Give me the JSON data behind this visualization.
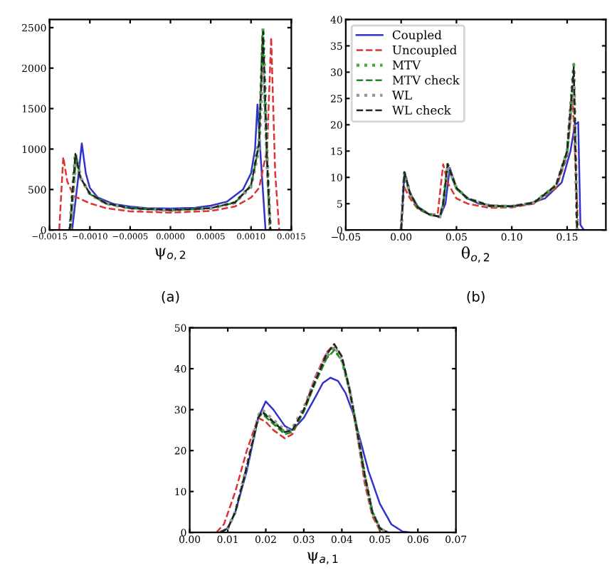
{
  "chart_data": [
    {
      "type": "line",
      "xlabel": "ψ$_{o,2}$",
      "annotations": [
        "(a)"
      ],
      "xlim": [
        -0.0015,
        0.0015
      ],
      "ylim": [
        0,
        2600
      ],
      "xticks": [
        {
          "value": -0.0015,
          "label": "−0.0015"
        },
        {
          "value": -0.001,
          "label": "−0.0010"
        },
        {
          "value": -0.0005,
          "label": "−0.0005"
        },
        {
          "value": 0,
          "label": "0.0000"
        },
        {
          "value": 0.0005,
          "label": "0.0005"
        },
        {
          "value": 0.001,
          "label": "0.0010"
        },
        {
          "value": 0.0015,
          "label": "0.0015"
        }
      ],
      "yticks": [
        0,
        500,
        1000,
        1500,
        2000,
        2500
      ],
      "grid": false,
      "legend": false,
      "series": [
        {
          "color": "#3333cc",
          "line_style": "solid",
          "x": [
            -0.00122,
            -0.00115,
            -0.0011,
            -0.00105,
            -0.001,
            -0.0009,
            -0.0007,
            -0.0005,
            -0.0003,
            0,
            0.0003,
            0.0005,
            0.0007,
            0.0009,
            0.001,
            0.00105,
            0.00108,
            0.00112,
            0.00118
          ],
          "values": [
            0,
            600,
            1070,
            700,
            520,
            400,
            320,
            290,
            270,
            265,
            275,
            300,
            350,
            500,
            700,
            1000,
            1550,
            900,
            0
          ]
        },
        {
          "color": "#dd3333",
          "line_style": "dashed",
          "x": [
            -0.00138,
            -0.00133,
            -0.00128,
            -0.0012,
            -0.001,
            -0.0008,
            -0.0005,
            0,
            0.0005,
            0.0008,
            0.001,
            0.0011,
            0.0012,
            0.00125,
            0.0013,
            0.00135
          ],
          "values": [
            0,
            900,
            600,
            420,
            330,
            270,
            230,
            215,
            235,
            290,
            400,
            520,
            1000,
            2380,
            700,
            0
          ]
        },
        {
          "color": "#44aa44",
          "line_style": "dotted",
          "x": [
            -0.00125,
            -0.00118,
            -0.00112,
            -0.001,
            -0.0008,
            -0.0005,
            0,
            0.0005,
            0.0008,
            0.001,
            0.0011,
            0.00115,
            0.0012,
            0.00124
          ],
          "values": [
            0,
            950,
            650,
            450,
            330,
            270,
            245,
            270,
            340,
            550,
            1100,
            2500,
            900,
            0
          ]
        },
        {
          "color": "#228822",
          "line_style": "dashed",
          "x": [
            -0.00124,
            -0.00117,
            -0.00111,
            -0.001,
            -0.0008,
            -0.0005,
            0,
            0.0005,
            0.0008,
            0.001,
            0.0011,
            0.00114,
            0.0012,
            0.00123
          ],
          "values": [
            0,
            920,
            640,
            445,
            325,
            268,
            243,
            268,
            338,
            540,
            1050,
            2400,
            800,
            0
          ]
        },
        {
          "color": "#999999",
          "line_style": "dotted",
          "x": [
            -0.00124,
            -0.00117,
            -0.00111,
            -0.001,
            -0.0008,
            -0.0005,
            0,
            0.0005,
            0.0008,
            0.001,
            0.0011,
            0.00115,
            0.0012,
            0.00124
          ],
          "values": [
            0,
            900,
            640,
            440,
            325,
            265,
            240,
            265,
            335,
            530,
            1000,
            2000,
            800,
            0
          ]
        },
        {
          "color": "#222222",
          "line_style": "dashed",
          "x": [
            -0.00125,
            -0.00118,
            -0.00112,
            -0.001,
            -0.0008,
            -0.0005,
            0,
            0.0005,
            0.0008,
            0.001,
            0.0011,
            0.00115,
            0.0012,
            0.00124
          ],
          "values": [
            0,
            940,
            650,
            450,
            330,
            270,
            245,
            270,
            340,
            550,
            1080,
            2450,
            850,
            0
          ]
        }
      ]
    },
    {
      "type": "line",
      "xlabel": "θ$_{o,2}$",
      "annotations": [
        "(b)"
      ],
      "xlim": [
        -0.05,
        0.185
      ],
      "ylim": [
        0,
        40
      ],
      "xticks": [
        {
          "value": -0.05,
          "label": "−0.05"
        },
        {
          "value": 0,
          "label": "0.00"
        },
        {
          "value": 0.05,
          "label": "0.05"
        },
        {
          "value": 0.1,
          "label": "0.10"
        },
        {
          "value": 0.15,
          "label": "0.15"
        }
      ],
      "yticks": [
        0,
        5,
        10,
        15,
        20,
        25,
        30,
        35,
        40
      ],
      "grid": false,
      "legend": "top left",
      "series": [
        {
          "name": "Coupled",
          "color": "#3333cc",
          "line_style": "solid",
          "x": [
            0,
            0.003,
            0.008,
            0.015,
            0.025,
            0.035,
            0.04,
            0.044,
            0.05,
            0.06,
            0.07,
            0.09,
            0.11,
            0.13,
            0.145,
            0.153,
            0.157,
            0.16,
            0.162,
            0.165
          ],
          "values": [
            0,
            11,
            7,
            4.5,
            3,
            2.5,
            5,
            11.8,
            8,
            6,
            5,
            4.5,
            4.7,
            6,
            9,
            15,
            20,
            20.5,
            1,
            0
          ]
        },
        {
          "name": "Uncoupled",
          "color": "#dd3333",
          "line_style": "dashed",
          "x": [
            0,
            0.002,
            0.008,
            0.015,
            0.025,
            0.033,
            0.038,
            0.042,
            0.05,
            0.06,
            0.08,
            0.1,
            0.12,
            0.14,
            0.15,
            0.155,
            0.158,
            0.16
          ],
          "values": [
            0,
            8.5,
            6,
            4,
            3,
            3,
            12.5,
            9,
            6,
            5,
            4.2,
            4.3,
            5,
            8,
            14,
            25,
            10,
            0
          ]
        },
        {
          "name": "MTV",
          "color": "#44aa44",
          "line_style": "dotted",
          "x": [
            0,
            0.003,
            0.008,
            0.015,
            0.025,
            0.035,
            0.038,
            0.042,
            0.05,
            0.06,
            0.08,
            0.1,
            0.12,
            0.14,
            0.15,
            0.156,
            0.159
          ],
          "values": [
            0,
            11,
            7,
            4.3,
            3,
            2.5,
            5,
            12.5,
            8,
            6,
            4.6,
            4.5,
            5.2,
            8.5,
            15,
            31.5,
            0
          ]
        },
        {
          "name": "MTV check",
          "color": "#228822",
          "line_style": "dashed",
          "x": [
            0,
            0.003,
            0.008,
            0.015,
            0.025,
            0.035,
            0.038,
            0.042,
            0.05,
            0.06,
            0.08,
            0.1,
            0.12,
            0.14,
            0.15,
            0.156,
            0.159
          ],
          "values": [
            0,
            10.5,
            6.8,
            4.2,
            3,
            2.5,
            5,
            12,
            7.8,
            5.9,
            4.5,
            4.5,
            5.1,
            8.3,
            14.5,
            30,
            0
          ]
        },
        {
          "name": "WL",
          "color": "#999999",
          "line_style": "dotted",
          "x": [
            0,
            0.003,
            0.008,
            0.015,
            0.025,
            0.035,
            0.038,
            0.042,
            0.05,
            0.06,
            0.08,
            0.1,
            0.12,
            0.14,
            0.15,
            0.156,
            0.159
          ],
          "values": [
            0,
            10.8,
            6.9,
            4.3,
            3,
            2.5,
            5,
            12.2,
            7.9,
            6,
            4.6,
            4.5,
            5.2,
            8.4,
            14.8,
            29,
            0
          ]
        },
        {
          "name": "WL check",
          "color": "#222222",
          "line_style": "dashed",
          "x": [
            0,
            0.003,
            0.008,
            0.015,
            0.025,
            0.035,
            0.038,
            0.042,
            0.05,
            0.06,
            0.08,
            0.1,
            0.12,
            0.14,
            0.15,
            0.156,
            0.159
          ],
          "values": [
            0,
            11,
            7,
            4.3,
            3,
            2.5,
            5,
            12.5,
            8,
            6,
            4.6,
            4.5,
            5.2,
            8.5,
            15,
            31,
            0
          ]
        }
      ]
    },
    {
      "type": "line",
      "xlabel": "ψ$_{a,1}$",
      "xlim": [
        0,
        0.07
      ],
      "ylim": [
        0,
        50
      ],
      "xticks": [
        {
          "value": 0,
          "label": "0.00"
        },
        {
          "value": 0.01,
          "label": "0.01"
        },
        {
          "value": 0.02,
          "label": "0.02"
        },
        {
          "value": 0.03,
          "label": "0.03"
        },
        {
          "value": 0.04,
          "label": "0.04"
        },
        {
          "value": 0.05,
          "label": "0.05"
        },
        {
          "value": 0.06,
          "label": "0.06"
        },
        {
          "value": 0.07,
          "label": "0.07"
        }
      ],
      "yticks": [
        0,
        10,
        20,
        30,
        40,
        50
      ],
      "grid": false,
      "legend": false,
      "series": [
        {
          "color": "#3333cc",
          "line_style": "solid",
          "x": [
            0.008,
            0.01,
            0.012,
            0.015,
            0.018,
            0.02,
            0.022,
            0.025,
            0.027,
            0.03,
            0.033,
            0.035,
            0.037,
            0.039,
            0.041,
            0.043,
            0.045,
            0.047,
            0.05,
            0.053,
            0.056,
            0.058
          ],
          "values": [
            0,
            1,
            5,
            15,
            28,
            32,
            30,
            26,
            25,
            28,
            33,
            36.5,
            37.8,
            37,
            34,
            29,
            22,
            15,
            7,
            2,
            0.2,
            0
          ]
        },
        {
          "color": "#dd3333",
          "line_style": "dashed",
          "x": [
            0.007,
            0.009,
            0.012,
            0.015,
            0.018,
            0.02,
            0.022,
            0.025,
            0.027,
            0.03,
            0.033,
            0.036,
            0.038,
            0.04,
            0.042,
            0.044,
            0.046,
            0.048,
            0.05,
            0.052
          ],
          "values": [
            0,
            2,
            10,
            20,
            28,
            27,
            25,
            23,
            24,
            30,
            38,
            44,
            46,
            43,
            35,
            24,
            12,
            4,
            0.5,
            0
          ]
        },
        {
          "color": "#44aa44",
          "line_style": "dotted",
          "x": [
            0.008,
            0.01,
            0.012,
            0.015,
            0.018,
            0.019,
            0.022,
            0.025,
            0.027,
            0.03,
            0.033,
            0.036,
            0.038,
            0.04,
            0.042,
            0.044,
            0.046,
            0.048,
            0.05,
            0.052
          ],
          "values": [
            0,
            1,
            5,
            16,
            28,
            29.5,
            27,
            24.5,
            25,
            30,
            37,
            43,
            45,
            42,
            35,
            25,
            14,
            5,
            1,
            0
          ]
        },
        {
          "color": "#228822",
          "line_style": "dashed",
          "x": [
            0.008,
            0.01,
            0.012,
            0.015,
            0.018,
            0.019,
            0.022,
            0.025,
            0.027,
            0.03,
            0.033,
            0.036,
            0.038,
            0.04,
            0.042,
            0.044,
            0.046,
            0.048,
            0.05,
            0.052
          ],
          "values": [
            0,
            1,
            5,
            16,
            28,
            29,
            26.5,
            24,
            24.5,
            29.5,
            36.5,
            42.5,
            44.5,
            42,
            35,
            25,
            14,
            5,
            1,
            0
          ]
        },
        {
          "color": "#999999",
          "line_style": "dotted",
          "x": [
            0.008,
            0.01,
            0.012,
            0.015,
            0.018,
            0.019,
            0.022,
            0.025,
            0.027,
            0.03,
            0.033,
            0.036,
            0.038,
            0.04,
            0.042,
            0.044,
            0.046,
            0.048,
            0.05,
            0.052
          ],
          "values": [
            0,
            1,
            5,
            16,
            28.5,
            30,
            27.5,
            25,
            25.5,
            30.5,
            37.5,
            43.5,
            45.5,
            42.5,
            35,
            25,
            14,
            5,
            1,
            0
          ]
        },
        {
          "color": "#222222",
          "line_style": "dashed",
          "x": [
            0.008,
            0.01,
            0.012,
            0.015,
            0.018,
            0.019,
            0.022,
            0.025,
            0.027,
            0.03,
            0.033,
            0.036,
            0.038,
            0.04,
            0.042,
            0.044,
            0.046,
            0.048,
            0.05,
            0.052
          ],
          "values": [
            0,
            1,
            5,
            16,
            28,
            29.5,
            27,
            24.5,
            25,
            30,
            37,
            43.5,
            46,
            43,
            35,
            25,
            14,
            5,
            1,
            0
          ]
        }
      ]
    }
  ]
}
